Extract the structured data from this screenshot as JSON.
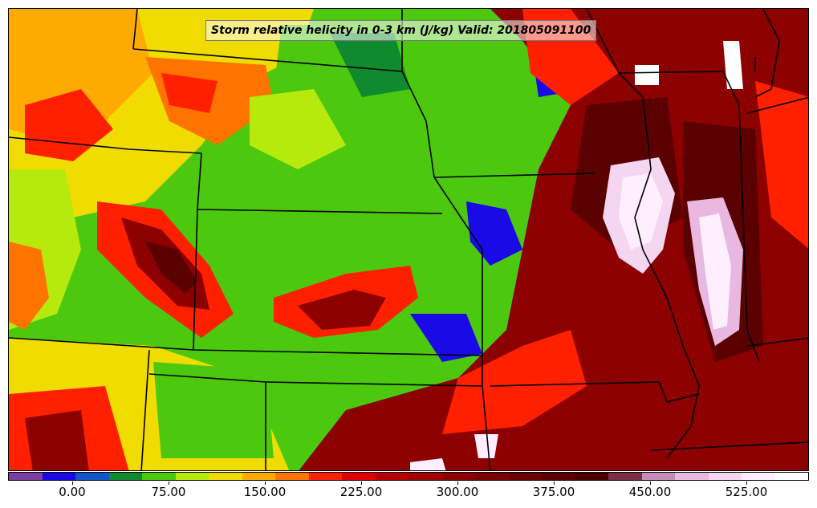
{
  "title": "Storm relative helicity in 0-3 km (J/kg) Valid: 201805091100",
  "colorbar": {
    "colors": [
      "#7b3f9e",
      "#1a0ae6",
      "#1155c6",
      "#0f8a2e",
      "#4cc80f",
      "#b6ea0c",
      "#f0dc00",
      "#ffaa00",
      "#ff7300",
      "#ff2000",
      "#e00000",
      "#b80000",
      "#a00000",
      "#8c0000",
      "#7a0000",
      "#6a0000",
      "#5a0000",
      "#4a0000",
      "#7a3040",
      "#c68cb8",
      "#e9b8e0",
      "#f5d6f0",
      "#ffeefe",
      "#ffffff"
    ],
    "ticks": [
      "0.00",
      "75.00",
      "150.00",
      "225.00",
      "300.00",
      "375.00",
      "450.00",
      "525.00"
    ]
  },
  "legend_colors": {
    "low_purple": "#7b3f9e",
    "blue": "#1a0ae6",
    "green": "#4cc80f",
    "yellow": "#f0dc00",
    "orange": "#ff7300",
    "red": "#ff2000",
    "dark_red": "#8c0000",
    "pink_white": "#f5d6f0"
  }
}
